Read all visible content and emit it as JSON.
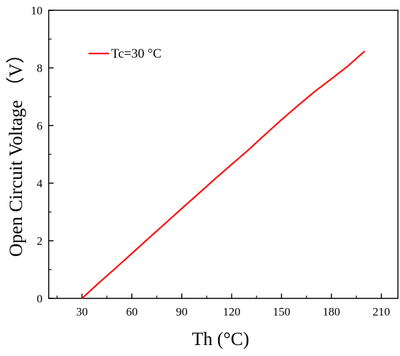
{
  "chart_data": {
    "type": "line",
    "xlabel": "Th (°C)",
    "ylabel": "Open Circuit Voltage （V）",
    "xlim": [
      10,
      220
    ],
    "ylim": [
      0,
      10
    ],
    "x_ticks": [
      30,
      60,
      90,
      120,
      150,
      180,
      210
    ],
    "y_ticks": [
      0,
      2,
      4,
      6,
      8,
      10
    ],
    "grid": false,
    "legend_position": "top-left",
    "series": [
      {
        "name": "Tc=30 °C",
        "color": "#ff0000",
        "x": [
          30,
          40,
          50,
          60,
          70,
          80,
          90,
          100,
          110,
          120,
          130,
          140,
          150,
          160,
          170,
          180,
          190,
          200
        ],
        "y": [
          0.0,
          0.53,
          1.04,
          1.56,
          2.08,
          2.6,
          3.12,
          3.63,
          4.15,
          4.65,
          5.15,
          5.68,
          6.2,
          6.7,
          7.18,
          7.62,
          8.07,
          8.58
        ]
      }
    ]
  }
}
